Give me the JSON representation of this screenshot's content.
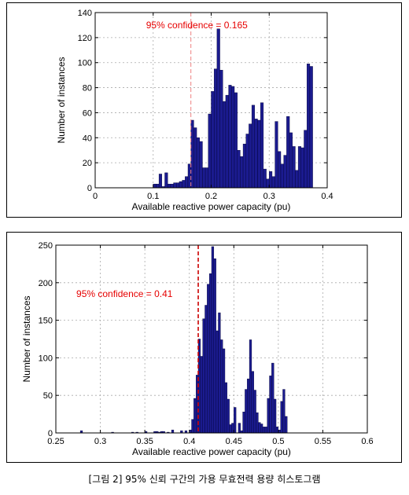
{
  "caption": "[그림 2] 95% 신뢰 구간의 가용 무효전력 용량 히스토그램",
  "chart_data": [
    {
      "type": "bar",
      "xlabel": "Available reactive power capacity (pu)",
      "ylabel": "Number of instances",
      "xlim": [
        0,
        0.4
      ],
      "ylim": [
        0,
        140
      ],
      "xticks": [
        "0",
        "0.1",
        "0.2",
        "0.3",
        "0.4"
      ],
      "yticks": [
        "0",
        "20",
        "40",
        "60",
        "80",
        "100",
        "120",
        "140"
      ],
      "grid": "dashed",
      "bin_width": 0.005,
      "annotation": {
        "text": "95% confidence = 0.165",
        "x": 0.165,
        "color": "#e60000",
        "line_color": "#f08080"
      },
      "bar_color": "#1b1b8f",
      "bins": [
        [
          0.1,
          3
        ],
        [
          0.105,
          3
        ],
        [
          0.11,
          11
        ],
        [
          0.115,
          1
        ],
        [
          0.12,
          12
        ],
        [
          0.125,
          3
        ],
        [
          0.13,
          3
        ],
        [
          0.135,
          4
        ],
        [
          0.14,
          4
        ],
        [
          0.145,
          5
        ],
        [
          0.15,
          6
        ],
        [
          0.155,
          9
        ],
        [
          0.16,
          19
        ],
        [
          0.165,
          54
        ],
        [
          0.17,
          48
        ],
        [
          0.175,
          40
        ],
        [
          0.18,
          37
        ],
        [
          0.185,
          16
        ],
        [
          0.19,
          16
        ],
        [
          0.195,
          59
        ],
        [
          0.2,
          77
        ],
        [
          0.205,
          95
        ],
        [
          0.21,
          127
        ],
        [
          0.215,
          94
        ],
        [
          0.22,
          69
        ],
        [
          0.225,
          74
        ],
        [
          0.23,
          82
        ],
        [
          0.235,
          81
        ],
        [
          0.24,
          76
        ],
        [
          0.245,
          30
        ],
        [
          0.25,
          25
        ],
        [
          0.255,
          35
        ],
        [
          0.26,
          43
        ],
        [
          0.265,
          51
        ],
        [
          0.27,
          66
        ],
        [
          0.275,
          55
        ],
        [
          0.28,
          54
        ],
        [
          0.285,
          68
        ],
        [
          0.29,
          15
        ],
        [
          0.295,
          7
        ],
        [
          0.3,
          13
        ],
        [
          0.305,
          9
        ],
        [
          0.31,
          53
        ],
        [
          0.315,
          29
        ],
        [
          0.32,
          19
        ],
        [
          0.325,
          26
        ],
        [
          0.33,
          57
        ],
        [
          0.335,
          44
        ],
        [
          0.34,
          33
        ],
        [
          0.345,
          14
        ],
        [
          0.35,
          33
        ],
        [
          0.355,
          32
        ],
        [
          0.36,
          46
        ],
        [
          0.365,
          99
        ],
        [
          0.37,
          97
        ]
      ]
    },
    {
      "type": "bar",
      "xlabel": "Available reactive power capacity (pu)",
      "ylabel": "Number of instances",
      "xlim": [
        0.25,
        0.6
      ],
      "ylim": [
        0,
        250
      ],
      "xticks": [
        "0.25",
        "0.3",
        "0.35",
        "0.4",
        "0.45",
        "0.5",
        "0.55",
        "0.6"
      ],
      "yticks": [
        "0",
        "50",
        "100",
        "150",
        "200",
        "250"
      ],
      "grid": "dashed",
      "bin_width": 0.0025,
      "annotation": {
        "text": "95% confidence = 0.41",
        "x": 0.41,
        "color": "#e60000",
        "line_color": "#cc0000"
      },
      "bar_color": "#1b1b8f",
      "bins": [
        [
          0.2775,
          3
        ],
        [
          0.3125,
          1
        ],
        [
          0.335,
          1
        ],
        [
          0.34,
          1
        ],
        [
          0.35,
          2
        ],
        [
          0.36,
          2
        ],
        [
          0.3625,
          2
        ],
        [
          0.365,
          1
        ],
        [
          0.3675,
          2
        ],
        [
          0.37,
          2
        ],
        [
          0.375,
          1
        ],
        [
          0.38,
          4
        ],
        [
          0.39,
          3
        ],
        [
          0.395,
          3
        ],
        [
          0.4,
          4
        ],
        [
          0.4025,
          18
        ],
        [
          0.405,
          46
        ],
        [
          0.4075,
          77
        ],
        [
          0.41,
          125
        ],
        [
          0.4125,
          102
        ],
        [
          0.415,
          152
        ],
        [
          0.4175,
          170
        ],
        [
          0.42,
          198
        ],
        [
          0.4225,
          212
        ],
        [
          0.425,
          248
        ],
        [
          0.4275,
          232
        ],
        [
          0.43,
          136
        ],
        [
          0.4325,
          160
        ],
        [
          0.435,
          124
        ],
        [
          0.4375,
          112
        ],
        [
          0.44,
          67
        ],
        [
          0.4425,
          45
        ],
        [
          0.445,
          11
        ],
        [
          0.4475,
          13
        ],
        [
          0.45,
          34
        ],
        [
          0.455,
          13
        ],
        [
          0.4575,
          3
        ],
        [
          0.46,
          28
        ],
        [
          0.4625,
          58
        ],
        [
          0.465,
          72
        ],
        [
          0.4675,
          124
        ],
        [
          0.47,
          82
        ],
        [
          0.4725,
          57
        ],
        [
          0.475,
          27
        ],
        [
          0.4775,
          14
        ],
        [
          0.48,
          12
        ],
        [
          0.4825,
          8
        ],
        [
          0.485,
          8
        ],
        [
          0.4875,
          46
        ],
        [
          0.49,
          76
        ],
        [
          0.4925,
          93
        ],
        [
          0.495,
          45
        ],
        [
          0.4975,
          8
        ],
        [
          0.5,
          4
        ],
        [
          0.5025,
          42
        ],
        [
          0.505,
          58
        ],
        [
          0.5075,
          22
        ]
      ]
    }
  ]
}
